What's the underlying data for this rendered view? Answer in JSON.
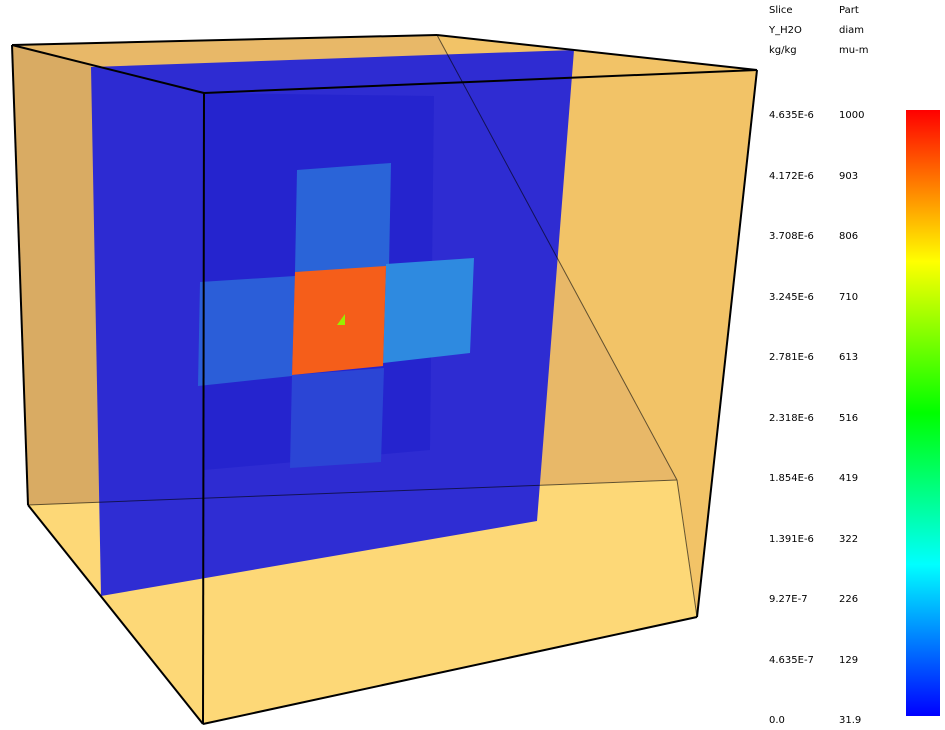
{
  "legend": {
    "slice": {
      "header": "Slice",
      "quantity": "Y_H2O",
      "unit": "kg/kg",
      "ticks": [
        "4.635E-6",
        "4.172E-6",
        "3.708E-6",
        "3.245E-6",
        "2.781E-6",
        "2.318E-6",
        "1.854E-6",
        "1.391E-6",
        "9.27E-7",
        "4.635E-7",
        "0.0"
      ]
    },
    "part": {
      "header": "Part",
      "quantity": "diam",
      "unit": "mu-m",
      "ticks": [
        "1000",
        "903",
        "806",
        "710",
        "613",
        "516",
        "419",
        "322",
        "226",
        "129",
        "31.9"
      ]
    },
    "colormap": [
      "#ff0000",
      "#ff7f00",
      "#ffff00",
      "#7fff00",
      "#00ff00",
      "#00ff7f",
      "#00ffff",
      "#007fff",
      "#0000ff"
    ]
  },
  "colors": {
    "box_face": "#f5c46a",
    "box_floor": "#fdd877",
    "slice_background": "#2424d8",
    "hot_cell": "#f55e1a",
    "particle": "#99ee00"
  }
}
